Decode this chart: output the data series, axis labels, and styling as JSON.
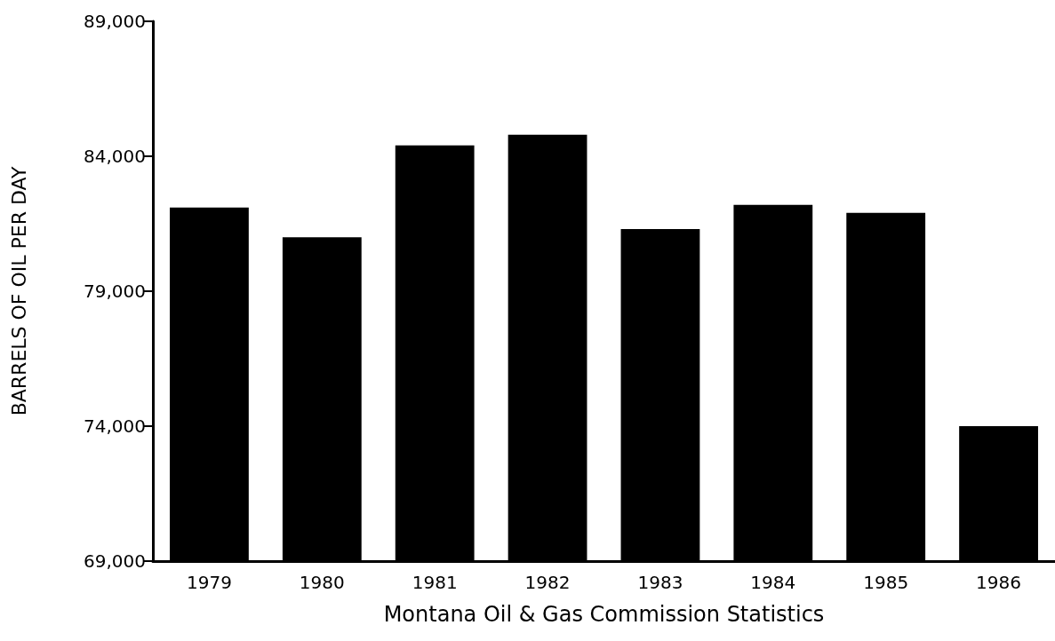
{
  "chart_data": {
    "type": "bar",
    "ylabel": "BARRELS OF OIL PER DAY",
    "xlabel": "Montana Oil & Gas Commission Statistics",
    "categories": [
      "1979",
      "1980",
      "1981",
      "1982",
      "1983",
      "1984",
      "1985",
      "1986"
    ],
    "values": [
      82100,
      81000,
      84400,
      84800,
      81300,
      82200,
      81900,
      74000
    ],
    "color": "#000000",
    "ylim": [
      69000,
      89000
    ],
    "yticks": [
      {
        "value": 69000,
        "label": "69,000"
      },
      {
        "value": 74000,
        "label": "74,000"
      },
      {
        "value": 79000,
        "label": "79,000"
      },
      {
        "value": 84000,
        "label": "84,000"
      },
      {
        "value": 89000,
        "label": "89,000"
      }
    ],
    "grid": false
  }
}
